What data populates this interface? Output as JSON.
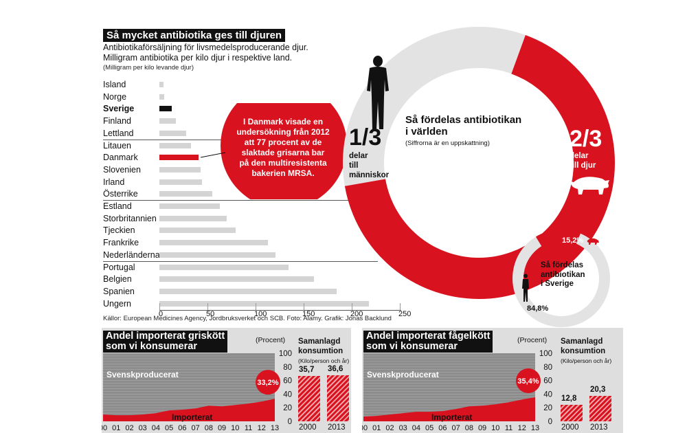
{
  "colors": {
    "red": "#d8121e",
    "gray": "#d4d4d4",
    "dark": "#111111"
  },
  "main_title": "Så mycket antibiotika ges till djuren",
  "subtitle_1": "Antibiotikaförsäljning för livsmedelsproducerande djur.",
  "subtitle_2": "Milligram antibiotika per kilo djur i respektive land.",
  "subtitle_3": "(Milligram per kilo levande djur)",
  "callout_text": "I Danmark visade en undersökning från 2012 att 77 procent av de slaktade grisarna bar på den multiresistenta bakerien MRSA.",
  "source": "Källor: European Medicines Agency, Jordbruksverket och SCB.  Foto: Alamy.  Grafik: Jonas Backlund",
  "world_donut": {
    "title_1": "Så fördelas antibiotikan",
    "title_2": "i världen",
    "note": "(Siffrorna är en uppskattning)",
    "humans_big": "1/3",
    "humans_l1": "delar",
    "humans_l2": "till",
    "humans_l3": "människor",
    "animals_big": "2/3",
    "animals_l1": "delar",
    "animals_l2": "till djur"
  },
  "sweden_donut": {
    "title_1": "Så fördelas",
    "title_2": "antibiotikan",
    "title_3": "i Sverige",
    "animals_label": "15,2%",
    "humans_label": "84,8%"
  },
  "pork": {
    "title_1": "Andel importerat griskött",
    "title_2": "som vi konsumerar",
    "unit": "(Procent)",
    "domestic_label": "Svenskproducerat",
    "import_label": "Importerat",
    "highlight": "33,2%",
    "consumption_title_1": "Samanlagd",
    "consumption_title_2": "konsumtion",
    "consumption_unit": "(Kilo/person och år)"
  },
  "poultry": {
    "title_1": "Andel importerat fågelkött",
    "title_2": "som vi konsumerar",
    "unit": "(Procent)",
    "domestic_label": "Svenskproducerat",
    "import_label": "Importerat",
    "highlight": "35,4%",
    "consumption_title_1": "Samanlagd",
    "consumption_title_2": "konsumtion",
    "consumption_unit": "(Kilo/person och år)"
  },
  "chart_data": [
    {
      "type": "bar",
      "orientation": "horizontal",
      "categories": [
        "Island",
        "Norge",
        "Sverige",
        "Finland",
        "Lettland",
        "Litauen",
        "Danmark",
        "Slovenien",
        "Irland",
        "Österrike",
        "Estland",
        "Storbritannien",
        "Tjeckien",
        "Frankrike",
        "Nederländerna",
        "Portugal",
        "Belgien",
        "Spanien",
        "Ungern"
      ],
      "values": [
        4,
        5,
        13,
        17,
        28,
        33,
        41,
        43,
        44,
        55,
        63,
        70,
        79,
        113,
        121,
        134,
        161,
        184,
        218
      ],
      "highlighted": {
        "Sverige": "dark",
        "Danmark": "red"
      },
      "xlim": [
        0,
        250
      ],
      "xticks": [
        0,
        50,
        100,
        150,
        200,
        250
      ]
    },
    {
      "type": "pie",
      "labels": [
        "människor",
        "djur"
      ],
      "values": [
        33.3,
        66.7
      ]
    },
    {
      "type": "pie",
      "labels": [
        "djur",
        "människor"
      ],
      "values": [
        15.2,
        84.8
      ]
    },
    {
      "type": "area",
      "x": [
        "00",
        "01",
        "02",
        "03",
        "04",
        "05",
        "06",
        "07",
        "08",
        "09",
        "10",
        "11",
        "12",
        "13"
      ],
      "imported": [
        10,
        9,
        9,
        10,
        12,
        16,
        17,
        19,
        23,
        22,
        24,
        26,
        29,
        33.2
      ],
      "ylim": [
        0,
        100
      ],
      "yticks": [
        0,
        20,
        40,
        60,
        80,
        100
      ]
    },
    {
      "type": "bar",
      "categories": [
        "2000",
        "2013"
      ],
      "values": [
        35.7,
        36.6
      ],
      "labels": [
        "35,7",
        "36,6"
      ]
    },
    {
      "type": "area",
      "x": [
        "00",
        "01",
        "02",
        "03",
        "04",
        "05",
        "06",
        "07",
        "08",
        "09",
        "10",
        "11",
        "12",
        "13"
      ],
      "imported": [
        7,
        8,
        10,
        12,
        14,
        14,
        15,
        18,
        22,
        23,
        25,
        28,
        32,
        35.4
      ],
      "ylim": [
        0,
        100
      ],
      "yticks": [
        0,
        20,
        40,
        60,
        80,
        100
      ]
    },
    {
      "type": "bar",
      "categories": [
        "2000",
        "2013"
      ],
      "values": [
        12.8,
        20.3
      ],
      "labels": [
        "12,8",
        "20,3"
      ]
    }
  ]
}
